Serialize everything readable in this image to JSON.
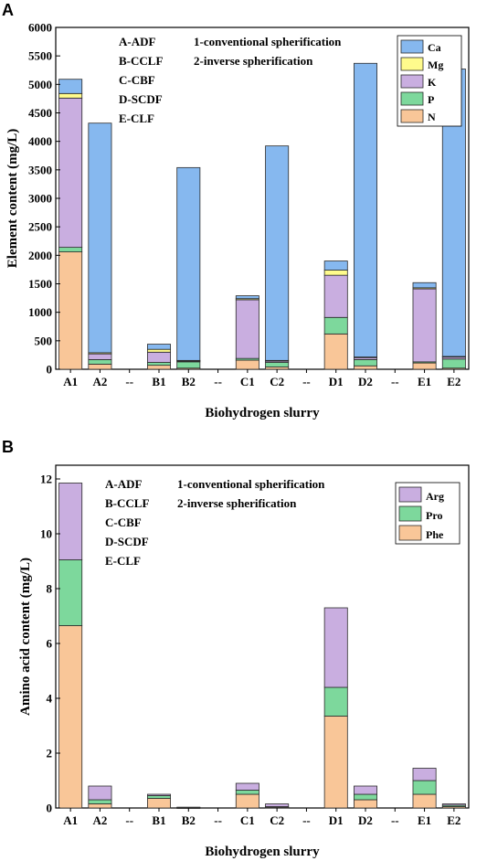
{
  "chart_data": [
    {
      "panel": "A",
      "type": "bar",
      "stacked": true,
      "categories": [
        "A1",
        "A2",
        "--",
        "B1",
        "B2",
        "--",
        "C1",
        "C2",
        "--",
        "D1",
        "D2",
        "--",
        "E1",
        "E2"
      ],
      "xlabel": "Biohydrogen slurry",
      "ylabel": "Element content (mg/L)",
      "ylim": [
        0,
        6000
      ],
      "yticks": [
        0,
        500,
        1000,
        1500,
        2000,
        2500,
        3000,
        3500,
        4000,
        4500,
        5000,
        5500,
        6000
      ],
      "grid": false,
      "legend_position": "top-right",
      "annotations": {
        "left": [
          "A-ADF",
          "B-CCLF",
          "C-CBF",
          "D-SCDF",
          "E-CLF"
        ],
        "right": [
          "1-conventional spherification",
          "2-inverse spherification"
        ]
      },
      "series": [
        {
          "name": "N",
          "color": "#f9c698",
          "values": [
            2060,
            90,
            null,
            70,
            20,
            null,
            160,
            40,
            null,
            620,
            60,
            null,
            110,
            20
          ]
        },
        {
          "name": "P",
          "color": "#7dd89c",
          "values": [
            80,
            80,
            null,
            50,
            110,
            null,
            30,
            80,
            null,
            290,
            110,
            null,
            20,
            160
          ]
        },
        {
          "name": "K",
          "color": "#c9aee0",
          "values": [
            2620,
            100,
            null,
            180,
            20,
            null,
            1030,
            30,
            null,
            740,
            40,
            null,
            1280,
            40
          ]
        },
        {
          "name": "Mg",
          "color": "#fffb8c",
          "values": [
            80,
            20,
            null,
            50,
            5,
            null,
            20,
            5,
            null,
            90,
            5,
            null,
            20,
            5
          ]
        },
        {
          "name": "Ca",
          "color": "#86b8ef",
          "values": [
            250,
            4030,
            null,
            90,
            3385,
            null,
            50,
            3765,
            null,
            160,
            5155,
            null,
            90,
            5045
          ]
        }
      ]
    },
    {
      "panel": "B",
      "type": "bar",
      "stacked": true,
      "categories": [
        "A1",
        "A2",
        "--",
        "B1",
        "B2",
        "--",
        "C1",
        "C2",
        "--",
        "D1",
        "D2",
        "--",
        "E1",
        "E2"
      ],
      "xlabel": "Biohydrogen slurry",
      "ylabel": "Amino acid content (mg/L)",
      "ylim": [
        0,
        12.5
      ],
      "yticks": [
        0,
        2,
        4,
        6,
        8,
        10,
        12
      ],
      "grid": false,
      "legend_position": "top-right",
      "annotations": {
        "left": [
          "A-ADF",
          "B-CCLF",
          "C-CBF",
          "D-SCDF",
          "E-CLF"
        ],
        "right": [
          "1-conventional spherification",
          "2-inverse spherification"
        ]
      },
      "series": [
        {
          "name": "Phe",
          "color": "#f9c698",
          "values": [
            6.65,
            0.15,
            null,
            0.35,
            0.01,
            null,
            0.5,
            0.03,
            null,
            3.35,
            0.3,
            null,
            0.5,
            0.05
          ]
        },
        {
          "name": "Pro",
          "color": "#7dd89c",
          "values": [
            2.4,
            0.15,
            null,
            0.1,
            0.01,
            null,
            0.15,
            0.02,
            null,
            1.05,
            0.2,
            null,
            0.5,
            0.05
          ]
        },
        {
          "name": "Arg",
          "color": "#c9aee0",
          "values": [
            2.8,
            0.5,
            null,
            0.05,
            0.01,
            null,
            0.25,
            0.1,
            null,
            2.9,
            0.3,
            null,
            0.45,
            0.05
          ]
        }
      ]
    }
  ],
  "panel_labels": [
    "A",
    "B"
  ]
}
